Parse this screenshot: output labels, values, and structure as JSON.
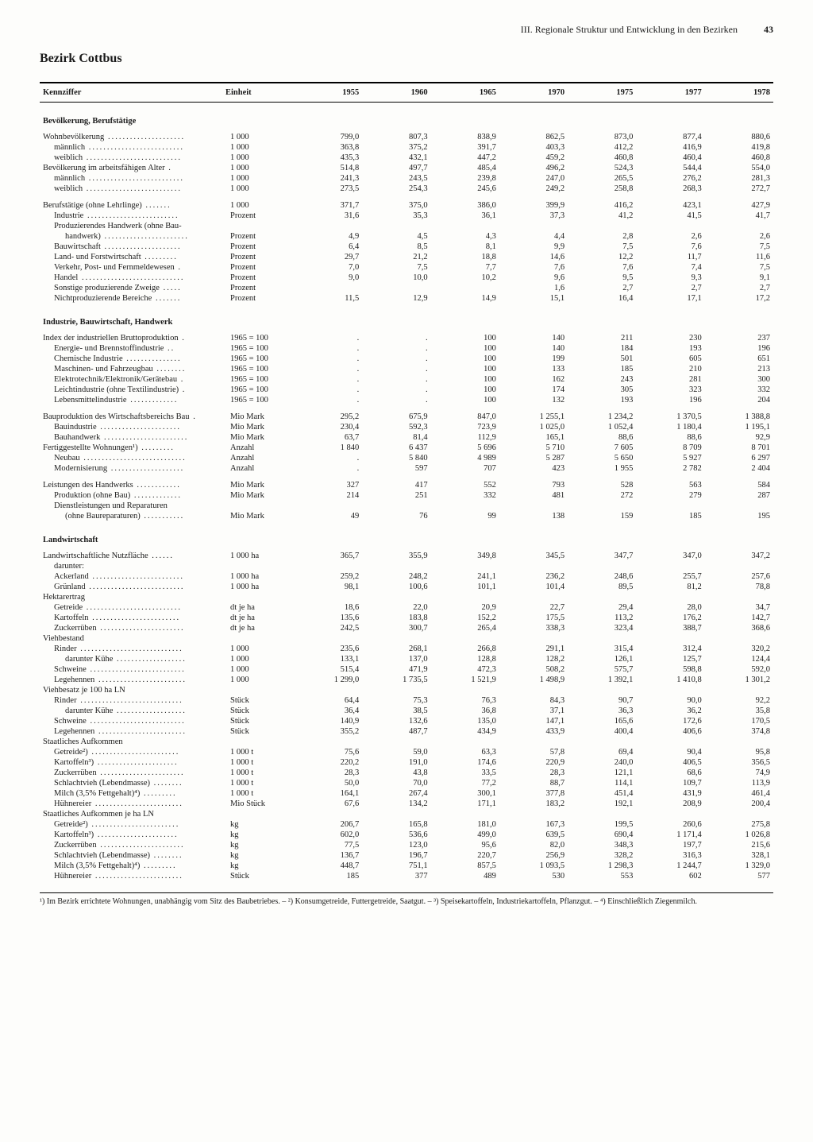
{
  "header": {
    "chapter": "III. Regionale Struktur und Entwicklung in den Bezirken",
    "page": "43"
  },
  "title": "Bezirk Cottbus",
  "columns": {
    "kennziffer": "Kennziffer",
    "einheit": "Einheit",
    "years": [
      "1955",
      "1960",
      "1965",
      "1970",
      "1975",
      "1977",
      "1978"
    ]
  },
  "sections": [
    {
      "title": "Bevölkerung, Berufstätige",
      "rows": [
        {
          "label": "Wohnbevölkerung",
          "unit": "1 000",
          "vals": [
            "799,0",
            "807,3",
            "838,9",
            "862,5",
            "873,0",
            "877,4",
            "880,6"
          ]
        },
        {
          "label": "männlich",
          "indent": 1,
          "unit": "1 000",
          "vals": [
            "363,8",
            "375,2",
            "391,7",
            "403,3",
            "412,2",
            "416,9",
            "419,8"
          ]
        },
        {
          "label": "weiblich",
          "indent": 1,
          "unit": "1 000",
          "vals": [
            "435,3",
            "432,1",
            "447,2",
            "459,2",
            "460,8",
            "460,4",
            "460,8"
          ]
        },
        {
          "label": "Bevölkerung im arbeitsfähigen Alter",
          "unit": "1 000",
          "vals": [
            "514,8",
            "497,7",
            "485,4",
            "496,2",
            "524,3",
            "544,4",
            "554,0"
          ]
        },
        {
          "label": "männlich",
          "indent": 1,
          "unit": "1 000",
          "vals": [
            "241,3",
            "243,5",
            "239,8",
            "247,0",
            "265,5",
            "276,2",
            "281,3"
          ]
        },
        {
          "label": "weiblich",
          "indent": 1,
          "unit": "1 000",
          "vals": [
            "273,5",
            "254,3",
            "245,6",
            "249,2",
            "258,8",
            "268,3",
            "272,7"
          ]
        },
        {
          "spacer": true
        },
        {
          "label": "Berufstätige (ohne Lehrlinge)",
          "unit": "1 000",
          "vals": [
            "371,7",
            "375,0",
            "386,0",
            "399,9",
            "416,2",
            "423,1",
            "427,9"
          ]
        },
        {
          "label": "Industrie",
          "indent": 1,
          "unit": "Prozent",
          "vals": [
            "31,6",
            "35,3",
            "36,1",
            "37,3",
            "41,2",
            "41,5",
            "41,7"
          ]
        },
        {
          "label": "Produzierendes Handwerk (ohne Bau-",
          "indent": 1,
          "unit": "",
          "vals": [
            "",
            "",
            "",
            "",
            "",
            "",
            ""
          ]
        },
        {
          "label": "handwerk)",
          "indent": 2,
          "unit": "Prozent",
          "vals": [
            "4,9",
            "4,5",
            "4,3",
            "4,4",
            "2,8",
            "2,6",
            "2,6"
          ]
        },
        {
          "label": "Bauwirtschaft",
          "indent": 1,
          "unit": "Prozent",
          "vals": [
            "6,4",
            "8,5",
            "8,1",
            "9,9",
            "7,5",
            "7,6",
            "7,5"
          ]
        },
        {
          "label": "Land- und Forstwirtschaft",
          "indent": 1,
          "unit": "Prozent",
          "vals": [
            "29,7",
            "21,2",
            "18,8",
            "14,6",
            "12,2",
            "11,7",
            "11,6"
          ]
        },
        {
          "label": "Verkehr, Post- und Fernmeldewesen",
          "indent": 1,
          "unit": "Prozent",
          "vals": [
            "7,0",
            "7,5",
            "7,7",
            "7,6",
            "7,6",
            "7,4",
            "7,5"
          ]
        },
        {
          "label": "Handel",
          "indent": 1,
          "unit": "Prozent",
          "vals": [
            "9,0",
            "10,0",
            "10,2",
            "9,6",
            "9,5",
            "9,3",
            "9,1"
          ]
        },
        {
          "label": "Sonstige produzierende Zweige",
          "indent": 1,
          "unit": "Prozent",
          "vals": [
            "",
            "",
            "",
            "1,6",
            "2,7",
            "2,7",
            "2,7"
          ]
        },
        {
          "label": "Nichtproduzierende Bereiche",
          "indent": 1,
          "unit": "Prozent",
          "vals": [
            "11,5",
            "12,9",
            "14,9",
            "15,1",
            "16,4",
            "17,1",
            "17,2"
          ]
        }
      ]
    },
    {
      "title": "Industrie, Bauwirtschaft, Handwerk",
      "rows": [
        {
          "label": "Index der industriellen Bruttoproduktion",
          "unit": "1965 = 100",
          "vals": [
            ".",
            ".",
            "100",
            "140",
            "211",
            "230",
            "237"
          ]
        },
        {
          "label": "Energie- und Brennstoffindustrie",
          "indent": 1,
          "unit": "1965 = 100",
          "vals": [
            ".",
            ".",
            "100",
            "140",
            "184",
            "193",
            "196"
          ]
        },
        {
          "label": "Chemische Industrie",
          "indent": 1,
          "unit": "1965 = 100",
          "vals": [
            ".",
            ".",
            "100",
            "199",
            "501",
            "605",
            "651"
          ]
        },
        {
          "label": "Maschinen- und Fahrzeugbau",
          "indent": 1,
          "unit": "1965 = 100",
          "vals": [
            ".",
            ".",
            "100",
            "133",
            "185",
            "210",
            "213"
          ]
        },
        {
          "label": "Elektrotechnik/Elektronik/Gerätebau",
          "indent": 1,
          "unit": "1965 = 100",
          "vals": [
            ".",
            ".",
            "100",
            "162",
            "243",
            "281",
            "300"
          ]
        },
        {
          "label": "Leichtindustrie (ohne Textilindustrie)",
          "indent": 1,
          "unit": "1965 = 100",
          "vals": [
            ".",
            ".",
            "100",
            "174",
            "305",
            "323",
            "332"
          ]
        },
        {
          "label": "Lebensmittelindustrie",
          "indent": 1,
          "unit": "1965 = 100",
          "vals": [
            ".",
            ".",
            "100",
            "132",
            "193",
            "196",
            "204"
          ]
        },
        {
          "spacer": true
        },
        {
          "label": "Bauproduktion des Wirtschaftsbereichs Bau",
          "unit": "Mio Mark",
          "vals": [
            "295,2",
            "675,9",
            "847,0",
            "1 255,1",
            "1 234,2",
            "1 370,5",
            "1 388,8"
          ]
        },
        {
          "label": "Bauindustrie",
          "indent": 1,
          "unit": "Mio Mark",
          "vals": [
            "230,4",
            "592,3",
            "723,9",
            "1 025,0",
            "1 052,4",
            "1 180,4",
            "1 195,1"
          ]
        },
        {
          "label": "Bauhandwerk",
          "indent": 1,
          "unit": "Mio Mark",
          "vals": [
            "63,7",
            "81,4",
            "112,9",
            "165,1",
            "88,6",
            "88,6",
            "92,9"
          ]
        },
        {
          "label": "Fertiggestellte Wohnungen¹)",
          "unit": "Anzahl",
          "vals": [
            "1 840",
            "6 437",
            "5 696",
            "5 710",
            "7 605",
            "8 709",
            "8 701"
          ]
        },
        {
          "label": "Neubau",
          "indent": 1,
          "unit": "Anzahl",
          "vals": [
            ".",
            "5 840",
            "4 989",
            "5 287",
            "5 650",
            "5 927",
            "6 297"
          ]
        },
        {
          "label": "Modernisierung",
          "indent": 1,
          "unit": "Anzahl",
          "vals": [
            ".",
            "597",
            "707",
            "423",
            "1 955",
            "2 782",
            "2 404"
          ]
        },
        {
          "spacer": true
        },
        {
          "label": "Leistungen des Handwerks",
          "unit": "Mio Mark",
          "vals": [
            "327",
            "417",
            "552",
            "793",
            "528",
            "563",
            "584"
          ]
        },
        {
          "label": "Produktion (ohne Bau)",
          "indent": 1,
          "unit": "Mio Mark",
          "vals": [
            "214",
            "251",
            "332",
            "481",
            "272",
            "279",
            "287"
          ]
        },
        {
          "label": "Dienstleistungen und Reparaturen",
          "indent": 1,
          "unit": "",
          "vals": [
            "",
            "",
            "",
            "",
            "",
            "",
            ""
          ]
        },
        {
          "label": "(ohne Baureparaturen)",
          "indent": 2,
          "unit": "Mio Mark",
          "vals": [
            "49",
            "76",
            "99",
            "138",
            "159",
            "185",
            "195"
          ]
        }
      ]
    },
    {
      "title": "Landwirtschaft",
      "rows": [
        {
          "label": "Landwirtschaftliche Nutzfläche",
          "unit": "1 000 ha",
          "vals": [
            "365,7",
            "355,9",
            "349,8",
            "345,5",
            "347,7",
            "347,0",
            "347,2"
          ]
        },
        {
          "label": "darunter:",
          "indent": 1,
          "unit": "",
          "vals": [
            "",
            "",
            "",
            "",
            "",
            "",
            ""
          ]
        },
        {
          "label": "Ackerland",
          "indent": 1,
          "unit": "1 000 ha",
          "vals": [
            "259,2",
            "248,2",
            "241,1",
            "236,2",
            "248,6",
            "255,7",
            "257,6"
          ]
        },
        {
          "label": "Grünland",
          "indent": 1,
          "unit": "1 000 ha",
          "vals": [
            "98,1",
            "100,6",
            "101,1",
            "101,4",
            "89,5",
            "81,2",
            "78,8"
          ]
        },
        {
          "label": "Hektarertrag",
          "unit": "",
          "vals": [
            "",
            "",
            "",
            "",
            "",
            "",
            ""
          ]
        },
        {
          "label": "Getreide",
          "indent": 1,
          "unit": "dt je ha",
          "vals": [
            "18,6",
            "22,0",
            "20,9",
            "22,7",
            "29,4",
            "28,0",
            "34,7"
          ]
        },
        {
          "label": "Kartoffeln",
          "indent": 1,
          "unit": "dt je ha",
          "vals": [
            "135,6",
            "183,8",
            "152,2",
            "175,5",
            "113,2",
            "176,2",
            "142,7"
          ]
        },
        {
          "label": "Zuckerrüben",
          "indent": 1,
          "unit": "dt je ha",
          "vals": [
            "242,5",
            "300,7",
            "265,4",
            "338,3",
            "323,4",
            "388,7",
            "368,6"
          ]
        },
        {
          "label": "Viehbestand",
          "unit": "",
          "vals": [
            "",
            "",
            "",
            "",
            "",
            "",
            ""
          ]
        },
        {
          "label": "Rinder",
          "indent": 1,
          "unit": "1 000",
          "vals": [
            "235,6",
            "268,1",
            "266,8",
            "291,1",
            "315,4",
            "312,4",
            "320,2"
          ]
        },
        {
          "label": "darunter Kühe",
          "indent": 2,
          "unit": "1 000",
          "vals": [
            "133,1",
            "137,0",
            "128,8",
            "128,2",
            "126,1",
            "125,7",
            "124,4"
          ]
        },
        {
          "label": "Schweine",
          "indent": 1,
          "unit": "1 000",
          "vals": [
            "515,4",
            "471,9",
            "472,3",
            "508,2",
            "575,7",
            "598,8",
            "592,0"
          ]
        },
        {
          "label": "Legehennen",
          "indent": 1,
          "unit": "1 000",
          "vals": [
            "1 299,0",
            "1 735,5",
            "1 521,9",
            "1 498,9",
            "1 392,1",
            "1 410,8",
            "1 301,2"
          ]
        },
        {
          "label": "Viehbesatz je 100 ha LN",
          "unit": "",
          "vals": [
            "",
            "",
            "",
            "",
            "",
            "",
            ""
          ]
        },
        {
          "label": "Rinder",
          "indent": 1,
          "unit": "Stück",
          "vals": [
            "64,4",
            "75,3",
            "76,3",
            "84,3",
            "90,7",
            "90,0",
            "92,2"
          ]
        },
        {
          "label": "darunter Kühe",
          "indent": 2,
          "unit": "Stück",
          "vals": [
            "36,4",
            "38,5",
            "36,8",
            "37,1",
            "36,3",
            "36,2",
            "35,8"
          ]
        },
        {
          "label": "Schweine",
          "indent": 1,
          "unit": "Stück",
          "vals": [
            "140,9",
            "132,6",
            "135,0",
            "147,1",
            "165,6",
            "172,6",
            "170,5"
          ]
        },
        {
          "label": "Legehennen",
          "indent": 1,
          "unit": "Stück",
          "vals": [
            "355,2",
            "487,7",
            "434,9",
            "433,9",
            "400,4",
            "406,6",
            "374,8"
          ]
        },
        {
          "label": "Staatliches Aufkommen",
          "unit": "",
          "vals": [
            "",
            "",
            "",
            "",
            "",
            "",
            ""
          ]
        },
        {
          "label": "Getreide²)",
          "indent": 1,
          "unit": "1 000 t",
          "vals": [
            "75,6",
            "59,0",
            "63,3",
            "57,8",
            "69,4",
            "90,4",
            "95,8"
          ]
        },
        {
          "label": "Kartoffeln³)",
          "indent": 1,
          "unit": "1 000 t",
          "vals": [
            "220,2",
            "191,0",
            "174,6",
            "220,9",
            "240,0",
            "406,5",
            "356,5"
          ]
        },
        {
          "label": "Zuckerrüben",
          "indent": 1,
          "unit": "1 000 t",
          "vals": [
            "28,3",
            "43,8",
            "33,5",
            "28,3",
            "121,1",
            "68,6",
            "74,9"
          ]
        },
        {
          "label": "Schlachtvieh (Lebendmasse)",
          "indent": 1,
          "unit": "1 000 t",
          "vals": [
            "50,0",
            "70,0",
            "77,2",
            "88,7",
            "114,1",
            "109,7",
            "113,9"
          ]
        },
        {
          "label": "Milch (3,5% Fettgehalt)⁴)",
          "indent": 1,
          "unit": "1 000 t",
          "vals": [
            "164,1",
            "267,4",
            "300,1",
            "377,8",
            "451,4",
            "431,9",
            "461,4"
          ]
        },
        {
          "label": "Hühnereier",
          "indent": 1,
          "unit": "Mio Stück",
          "vals": [
            "67,6",
            "134,2",
            "171,1",
            "183,2",
            "192,1",
            "208,9",
            "200,4"
          ]
        },
        {
          "label": "Staatliches Aufkommen je ha LN",
          "unit": "",
          "vals": [
            "",
            "",
            "",
            "",
            "",
            "",
            ""
          ]
        },
        {
          "label": "Getreide²)",
          "indent": 1,
          "unit": "kg",
          "vals": [
            "206,7",
            "165,8",
            "181,0",
            "167,3",
            "199,5",
            "260,6",
            "275,8"
          ]
        },
        {
          "label": "Kartoffeln³)",
          "indent": 1,
          "unit": "kg",
          "vals": [
            "602,0",
            "536,6",
            "499,0",
            "639,5",
            "690,4",
            "1 171,4",
            "1 026,8"
          ]
        },
        {
          "label": "Zuckerrüben",
          "indent": 1,
          "unit": "kg",
          "vals": [
            "77,5",
            "123,0",
            "95,6",
            "82,0",
            "348,3",
            "197,7",
            "215,6"
          ]
        },
        {
          "label": "Schlachtvieh (Lebendmasse)",
          "indent": 1,
          "unit": "kg",
          "vals": [
            "136,7",
            "196,7",
            "220,7",
            "256,9",
            "328,2",
            "316,3",
            "328,1"
          ]
        },
        {
          "label": "Milch (3,5% Fettgehalt)⁴)",
          "indent": 1,
          "unit": "kg",
          "vals": [
            "448,7",
            "751,1",
            "857,5",
            "1 093,5",
            "1 298,3",
            "1 244,7",
            "1 329,0"
          ]
        },
        {
          "label": "Hühnereier",
          "indent": 1,
          "unit": "Stück",
          "vals": [
            "185",
            "377",
            "489",
            "530",
            "553",
            "602",
            "577"
          ]
        }
      ]
    }
  ],
  "footnotes": "¹) Im Bezirk errichtete Wohnungen, unabhängig vom Sitz des Baubetriebes. – ²) Konsumgetreide, Futtergetreide, Saatgut. – ³) Speisekartoffeln, Industriekartoffeln, Pflanzgut. – ⁴) Einschließlich Ziegenmilch."
}
